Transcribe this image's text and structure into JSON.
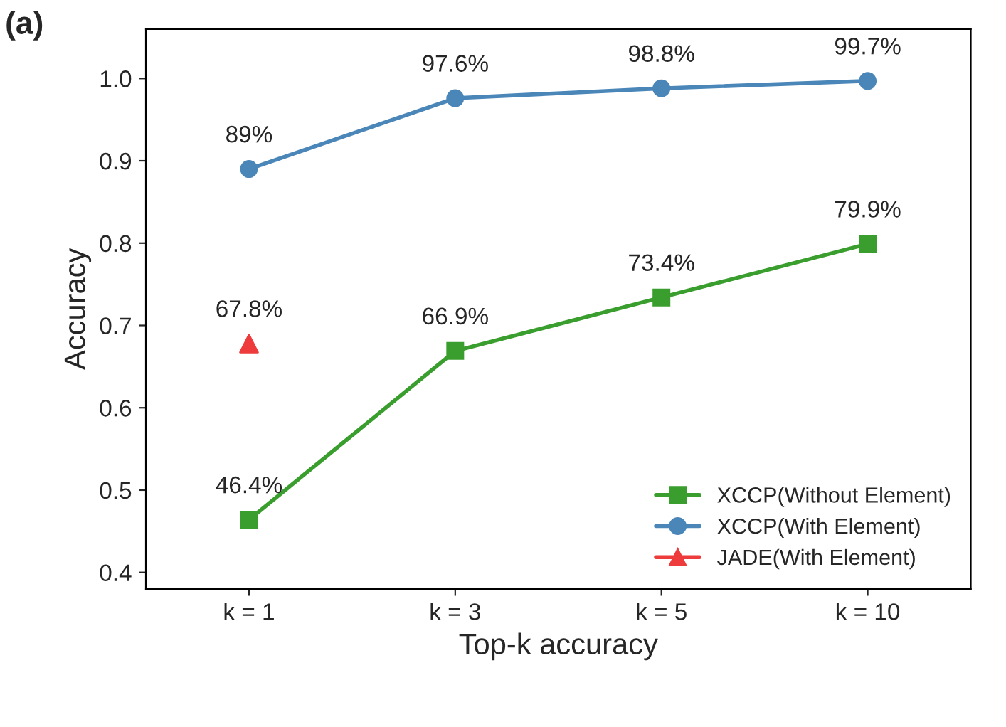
{
  "chart_data": {
    "type": "line",
    "xlabel": "Top-k accuracy",
    "ylabel": "Accuracy",
    "categories": [
      "k = 1",
      "k = 3",
      "k = 5",
      "k = 10"
    ],
    "series": [
      {
        "name": "XCCP(Without Element)",
        "color": "#3a9e2e",
        "marker": "square",
        "values": [
          0.464,
          0.669,
          0.734,
          0.799
        ],
        "value_labels": [
          "46.4%",
          "66.9%",
          "73.4%",
          "79.9%"
        ]
      },
      {
        "name": "XCCP(With Element)",
        "color": "#4a86b8",
        "marker": "circle",
        "values": [
          0.89,
          0.976,
          0.988,
          0.997
        ],
        "value_labels": [
          "89%",
          "97.6%",
          "98.8%",
          "99.7%"
        ]
      },
      {
        "name": "JADE(With Element)",
        "type": "scatter",
        "color": "#ee3b3b",
        "marker": "triangle",
        "values": [
          0.678,
          null,
          null,
          null
        ],
        "value_labels": [
          "67.8%",
          null,
          null,
          null
        ]
      }
    ],
    "ylim": [
      0.38,
      1.06
    ],
    "yticks": [
      0.4,
      0.5,
      0.6,
      0.7,
      0.8,
      0.9,
      {
        "value": 1.0,
        "label": "1.0"
      }
    ],
    "grid": false,
    "legend": "bottom right",
    "annotations": [
      "(a)"
    ]
  }
}
